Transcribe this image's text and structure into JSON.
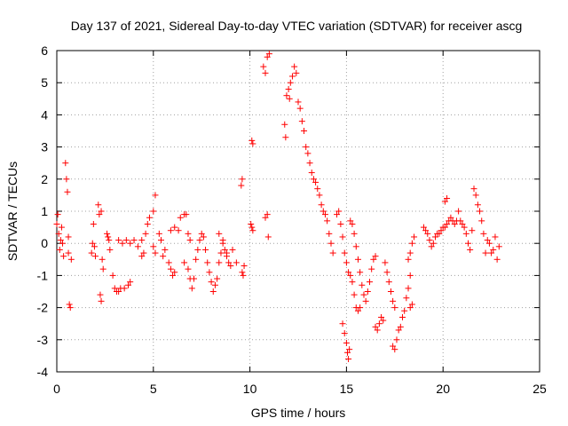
{
  "chart_data": {
    "type": "scatter",
    "title": "Day 137 of 2021, Sidereal Day-to-day VTEC variation (SDTVAR) for receiver ascg",
    "xlabel": "GPS time / hours",
    "ylabel": "SDTVAR / TECUs",
    "xlim": [
      0,
      25
    ],
    "ylim": [
      -4,
      6
    ],
    "xticks": [
      0,
      5,
      10,
      15,
      20,
      25
    ],
    "yticks": [
      -4,
      -3,
      -2,
      -1,
      0,
      1,
      2,
      3,
      4,
      5,
      6
    ],
    "grid": true,
    "marker": "+",
    "color": "#ff0000",
    "series": [
      {
        "name": "SDTVAR",
        "points": [
          [
            0.0,
            0.6
          ],
          [
            0.05,
            0.9
          ],
          [
            0.1,
            0.3
          ],
          [
            0.15,
            -0.2
          ],
          [
            0.2,
            0.1
          ],
          [
            0.25,
            0.5
          ],
          [
            0.3,
            0.0
          ],
          [
            0.35,
            -0.4
          ],
          [
            0.45,
            2.5
          ],
          [
            0.5,
            2.0
          ],
          [
            0.55,
            1.6
          ],
          [
            0.6,
            0.2
          ],
          [
            0.6,
            -0.3
          ],
          [
            0.65,
            -1.9
          ],
          [
            0.7,
            -2.0
          ],
          [
            0.75,
            -0.5
          ],
          [
            1.8,
            -0.3
          ],
          [
            1.85,
            0.0
          ],
          [
            1.9,
            0.6
          ],
          [
            1.95,
            -0.1
          ],
          [
            2.0,
            -0.4
          ],
          [
            2.15,
            1.2
          ],
          [
            2.2,
            0.9
          ],
          [
            2.3,
            1.0
          ],
          [
            2.25,
            -1.6
          ],
          [
            2.3,
            -1.8
          ],
          [
            2.4,
            -0.8
          ],
          [
            2.35,
            -0.5
          ],
          [
            2.6,
            0.3
          ],
          [
            2.65,
            0.2
          ],
          [
            2.7,
            0.1
          ],
          [
            2.75,
            -0.2
          ],
          [
            2.9,
            -1.0
          ],
          [
            3.0,
            -1.4
          ],
          [
            3.1,
            -1.5
          ],
          [
            3.2,
            -1.5
          ],
          [
            3.3,
            -1.4
          ],
          [
            3.5,
            -1.4
          ],
          [
            3.7,
            -1.3
          ],
          [
            3.8,
            -1.2
          ],
          [
            3.2,
            0.1
          ],
          [
            3.4,
            0.0
          ],
          [
            3.6,
            0.1
          ],
          [
            3.8,
            0.0
          ],
          [
            4.0,
            0.1
          ],
          [
            4.2,
            -0.1
          ],
          [
            4.4,
            -0.4
          ],
          [
            4.5,
            -0.3
          ],
          [
            4.4,
            0.1
          ],
          [
            4.6,
            0.3
          ],
          [
            4.7,
            0.6
          ],
          [
            4.8,
            0.8
          ],
          [
            5.0,
            1.0
          ],
          [
            5.1,
            1.5
          ],
          [
            5.0,
            -0.1
          ],
          [
            5.1,
            -0.3
          ],
          [
            5.3,
            0.3
          ],
          [
            5.4,
            0.1
          ],
          [
            5.5,
            -0.4
          ],
          [
            5.6,
            -0.2
          ],
          [
            5.8,
            -0.6
          ],
          [
            5.9,
            -0.8
          ],
          [
            6.0,
            -1.0
          ],
          [
            6.1,
            -0.9
          ],
          [
            5.9,
            0.4
          ],
          [
            6.1,
            0.5
          ],
          [
            6.3,
            0.4
          ],
          [
            6.4,
            0.8
          ],
          [
            6.6,
            0.9
          ],
          [
            6.7,
            0.9
          ],
          [
            6.8,
            0.3
          ],
          [
            6.9,
            0.1
          ],
          [
            6.6,
            -0.6
          ],
          [
            6.8,
            -0.8
          ],
          [
            6.9,
            -1.1
          ],
          [
            7.0,
            -1.4
          ],
          [
            7.1,
            -1.1
          ],
          [
            7.2,
            -0.5
          ],
          [
            7.3,
            -0.2
          ],
          [
            7.4,
            0.1
          ],
          [
            7.5,
            0.3
          ],
          [
            7.6,
            0.2
          ],
          [
            7.7,
            -0.2
          ],
          [
            7.8,
            -0.6
          ],
          [
            7.9,
            -0.9
          ],
          [
            8.0,
            -1.2
          ],
          [
            8.1,
            -1.5
          ],
          [
            8.2,
            -1.3
          ],
          [
            8.3,
            -1.1
          ],
          [
            8.4,
            -0.6
          ],
          [
            8.5,
            -0.3
          ],
          [
            8.6,
            0.1
          ],
          [
            8.7,
            -0.2
          ],
          [
            8.8,
            -0.4
          ],
          [
            8.9,
            -0.6
          ],
          [
            9.0,
            -0.7
          ],
          [
            8.4,
            0.3
          ],
          [
            8.6,
            0.0
          ],
          [
            8.8,
            -0.3
          ],
          [
            9.1,
            -0.2
          ],
          [
            9.3,
            -0.6
          ],
          [
            9.6,
            -0.9
          ],
          [
            9.65,
            -1.0
          ],
          [
            9.7,
            -0.7
          ],
          [
            9.55,
            1.8
          ],
          [
            9.6,
            2.0
          ],
          [
            10.1,
            3.2
          ],
          [
            10.15,
            3.1
          ],
          [
            10.05,
            0.6
          ],
          [
            10.1,
            0.5
          ],
          [
            10.15,
            0.4
          ],
          [
            10.7,
            5.5
          ],
          [
            10.8,
            5.3
          ],
          [
            10.9,
            5.8
          ],
          [
            11.0,
            5.9
          ],
          [
            10.8,
            0.8
          ],
          [
            10.9,
            0.9
          ],
          [
            10.95,
            0.2
          ],
          [
            11.8,
            3.7
          ],
          [
            11.85,
            3.3
          ],
          [
            11.9,
            4.6
          ],
          [
            12.0,
            4.8
          ],
          [
            12.05,
            4.5
          ],
          [
            12.1,
            5.0
          ],
          [
            12.2,
            5.2
          ],
          [
            12.3,
            5.5
          ],
          [
            12.4,
            5.3
          ],
          [
            12.5,
            4.4
          ],
          [
            12.6,
            4.2
          ],
          [
            12.7,
            3.8
          ],
          [
            12.8,
            3.5
          ],
          [
            12.9,
            3.0
          ],
          [
            13.0,
            2.8
          ],
          [
            13.1,
            2.5
          ],
          [
            13.2,
            2.2
          ],
          [
            13.3,
            2.0
          ],
          [
            13.4,
            1.9
          ],
          [
            13.5,
            1.7
          ],
          [
            13.6,
            1.5
          ],
          [
            13.7,
            1.2
          ],
          [
            13.8,
            1.0
          ],
          [
            13.9,
            0.9
          ],
          [
            14.0,
            0.7
          ],
          [
            14.1,
            0.3
          ],
          [
            14.2,
            0.0
          ],
          [
            14.3,
            -0.3
          ],
          [
            14.5,
            0.9
          ],
          [
            14.6,
            1.0
          ],
          [
            14.7,
            0.6
          ],
          [
            14.8,
            0.2
          ],
          [
            14.9,
            -0.3
          ],
          [
            15.0,
            -0.6
          ],
          [
            15.1,
            -0.9
          ],
          [
            15.2,
            -1.0
          ],
          [
            15.3,
            -1.2
          ],
          [
            15.4,
            -1.6
          ],
          [
            15.5,
            -2.0
          ],
          [
            15.6,
            -2.1
          ],
          [
            15.7,
            -2.0
          ],
          [
            14.8,
            -2.5
          ],
          [
            14.9,
            -2.8
          ],
          [
            15.0,
            -3.1
          ],
          [
            15.05,
            -3.4
          ],
          [
            15.1,
            -3.6
          ],
          [
            15.15,
            -3.3
          ],
          [
            15.2,
            0.7
          ],
          [
            15.3,
            0.6
          ],
          [
            15.4,
            0.3
          ],
          [
            15.5,
            -0.1
          ],
          [
            15.6,
            -0.5
          ],
          [
            15.7,
            -0.9
          ],
          [
            15.8,
            -1.3
          ],
          [
            15.9,
            -1.6
          ],
          [
            16.0,
            -1.8
          ],
          [
            16.1,
            -1.5
          ],
          [
            16.2,
            -1.2
          ],
          [
            16.3,
            -0.8
          ],
          [
            16.4,
            -0.5
          ],
          [
            16.5,
            -0.4
          ],
          [
            16.5,
            -2.6
          ],
          [
            16.6,
            -2.7
          ],
          [
            16.7,
            -2.5
          ],
          [
            16.8,
            -2.3
          ],
          [
            16.9,
            -2.4
          ],
          [
            17.0,
            -0.6
          ],
          [
            17.1,
            -0.9
          ],
          [
            17.2,
            -1.2
          ],
          [
            17.3,
            -1.5
          ],
          [
            17.4,
            -1.8
          ],
          [
            17.5,
            -2.0
          ],
          [
            17.4,
            -3.2
          ],
          [
            17.5,
            -3.3
          ],
          [
            17.6,
            -3.0
          ],
          [
            17.7,
            -2.7
          ],
          [
            17.8,
            -2.6
          ],
          [
            17.9,
            -2.3
          ],
          [
            18.0,
            -2.1
          ],
          [
            18.1,
            -1.7
          ],
          [
            18.2,
            -1.4
          ],
          [
            18.3,
            -1.0
          ],
          [
            18.2,
            -0.5
          ],
          [
            18.3,
            -0.3
          ],
          [
            18.4,
            0.0
          ],
          [
            18.5,
            0.2
          ],
          [
            18.3,
            -2.0
          ],
          [
            18.4,
            -1.9
          ],
          [
            19.0,
            0.5
          ],
          [
            19.1,
            0.4
          ],
          [
            19.2,
            0.3
          ],
          [
            19.3,
            0.1
          ],
          [
            19.4,
            -0.1
          ],
          [
            19.5,
            0.0
          ],
          [
            19.6,
            0.2
          ],
          [
            19.7,
            0.3
          ],
          [
            19.8,
            0.3
          ],
          [
            19.9,
            0.4
          ],
          [
            20.0,
            0.5
          ],
          [
            20.1,
            0.5
          ],
          [
            20.2,
            0.6
          ],
          [
            20.3,
            0.7
          ],
          [
            20.1,
            1.3
          ],
          [
            20.2,
            1.4
          ],
          [
            20.4,
            0.8
          ],
          [
            20.5,
            0.7
          ],
          [
            20.6,
            0.6
          ],
          [
            20.7,
            0.7
          ],
          [
            20.8,
            1.0
          ],
          [
            20.9,
            0.7
          ],
          [
            21.0,
            0.6
          ],
          [
            21.1,
            0.5
          ],
          [
            21.2,
            0.3
          ],
          [
            21.3,
            0.0
          ],
          [
            21.4,
            -0.2
          ],
          [
            21.5,
            0.4
          ],
          [
            21.6,
            1.7
          ],
          [
            21.7,
            1.5
          ],
          [
            21.8,
            1.2
          ],
          [
            21.9,
            1.0
          ],
          [
            22.0,
            0.7
          ],
          [
            22.1,
            0.3
          ],
          [
            22.2,
            -0.3
          ],
          [
            22.3,
            0.1
          ],
          [
            22.4,
            0.0
          ],
          [
            22.5,
            -0.3
          ],
          [
            22.6,
            -0.2
          ],
          [
            22.7,
            0.2
          ],
          [
            22.8,
            -0.5
          ],
          [
            22.9,
            -0.1
          ]
        ]
      }
    ]
  }
}
